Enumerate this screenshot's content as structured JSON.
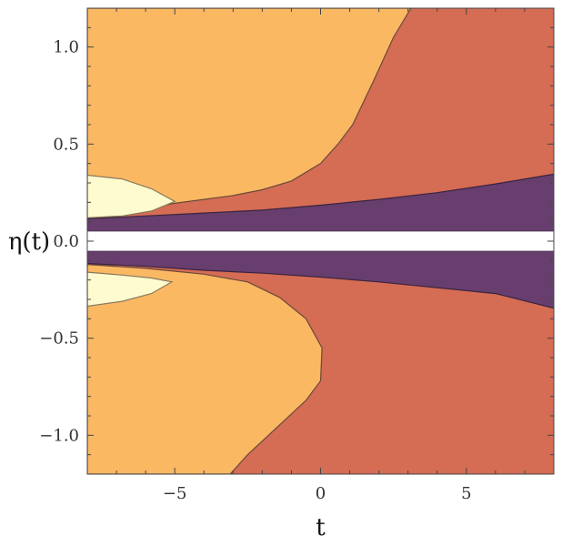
{
  "chart_data": {
    "type": "contour",
    "xlabel": "t",
    "ylabel": "η(t)",
    "xlim": [
      -8,
      8
    ],
    "ylim": [
      -1.2,
      1.2
    ],
    "xticks": [
      -5,
      0,
      5
    ],
    "yticks": [
      -1.0,
      -0.5,
      0.0,
      0.5,
      1.0
    ],
    "xtick_labels": [
      "−5",
      "0",
      "5"
    ],
    "ytick_labels": [
      "−1.0",
      "−0.5",
      "0.0",
      "0.5",
      "1.0"
    ],
    "grid": false,
    "gap_band": [
      -0.05,
      0.05
    ],
    "colors": {
      "lightest": "#fefbcf",
      "orange": "#fbb863",
      "red": "#d56c54",
      "purple": "#673e6e",
      "gap": "#ffffff",
      "frame": "#444444"
    },
    "regions": [
      {
        "name": "upper-lightest",
        "color": "lightest",
        "boundary": [
          [
            -8,
            0.34
          ],
          [
            -6.8,
            0.32
          ],
          [
            -5.8,
            0.27
          ],
          [
            -5.0,
            0.205
          ],
          [
            -5.8,
            0.155
          ],
          [
            -6.8,
            0.13
          ],
          [
            -8,
            0.12
          ]
        ]
      },
      {
        "name": "upper-orange-red-boundary",
        "color": "orange",
        "boundary": [
          [
            3.1,
            1.2
          ],
          [
            2.5,
            1.05
          ],
          [
            1.8,
            0.82
          ],
          [
            1.1,
            0.6
          ],
          [
            0.6,
            0.5
          ],
          [
            0.0,
            0.4
          ],
          [
            -1,
            0.31
          ],
          [
            -2,
            0.265
          ],
          [
            -3,
            0.235
          ],
          [
            -4,
            0.215
          ],
          [
            -5,
            0.195
          ],
          [
            -6,
            0.17
          ],
          [
            -7,
            0.145
          ],
          [
            -8,
            0.125
          ]
        ]
      },
      {
        "name": "upper-purple-top",
        "color": "purple",
        "boundary": [
          [
            -8,
            0.115
          ],
          [
            -6,
            0.13
          ],
          [
            -4,
            0.145
          ],
          [
            -2,
            0.16
          ],
          [
            0,
            0.185
          ],
          [
            2,
            0.215
          ],
          [
            4,
            0.25
          ],
          [
            6,
            0.295
          ],
          [
            8,
            0.345
          ]
        ]
      },
      {
        "name": "lower-lightest",
        "color": "lightest",
        "boundary": [
          [
            -8,
            -0.16
          ],
          [
            -6.8,
            -0.175
          ],
          [
            -5.8,
            -0.19
          ],
          [
            -5.1,
            -0.21
          ],
          [
            -5.8,
            -0.27
          ],
          [
            -6.8,
            -0.31
          ],
          [
            -8,
            -0.335
          ]
        ]
      },
      {
        "name": "lower-orange-red-boundary",
        "color": "orange",
        "boundary": [
          [
            -8,
            -0.12
          ],
          [
            -6,
            -0.14
          ],
          [
            -4,
            -0.17
          ],
          [
            -2.5,
            -0.21
          ],
          [
            -1.4,
            -0.29
          ],
          [
            -0.5,
            -0.4
          ],
          [
            0.05,
            -0.55
          ],
          [
            0.0,
            -0.72
          ],
          [
            -0.5,
            -0.82
          ],
          [
            -1.5,
            -0.96
          ],
          [
            -2.5,
            -1.1
          ],
          [
            -3.1,
            -1.2
          ]
        ]
      },
      {
        "name": "lower-purple-bottom",
        "color": "purple",
        "boundary": [
          [
            -8,
            -0.115
          ],
          [
            -6,
            -0.13
          ],
          [
            -4,
            -0.15
          ],
          [
            -2,
            -0.165
          ],
          [
            0,
            -0.185
          ],
          [
            2,
            -0.21
          ],
          [
            4,
            -0.24
          ],
          [
            6,
            -0.27
          ],
          [
            8,
            -0.345
          ]
        ]
      }
    ]
  }
}
